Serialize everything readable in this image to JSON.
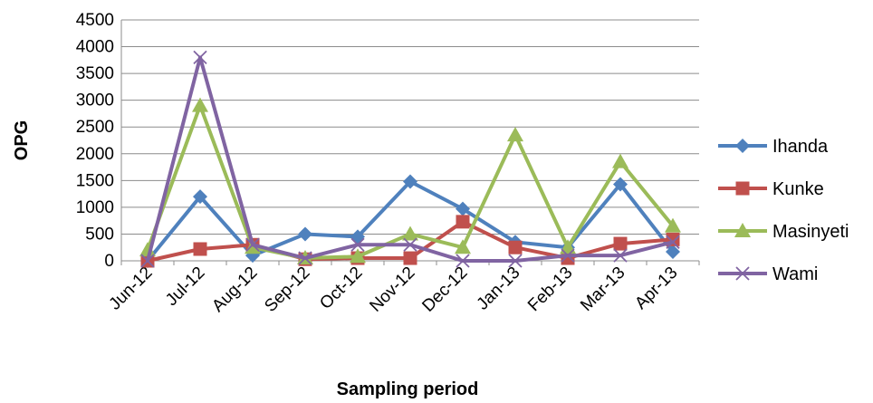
{
  "chart_data": {
    "type": "line",
    "xlabel": "Sampling period",
    "ylabel": "OPG",
    "categories": [
      "Jun-12",
      "Jul-12",
      "Aug-12",
      "Sep-12",
      "Oct-12",
      "Nov-12",
      "Dec-12",
      "Jan-13",
      "Feb-13",
      "Mar-13",
      "Apr-13"
    ],
    "ylim": [
      0,
      4500
    ],
    "yticks": [
      0,
      500,
      1000,
      1500,
      2000,
      2500,
      3000,
      3500,
      4000,
      4500
    ],
    "grid": true,
    "legend": "right",
    "series": [
      {
        "name": "Ihanda",
        "color": "#4f81bd",
        "marker": "diamond",
        "values": [
          0,
          1200,
          100,
          500,
          450,
          1480,
          970,
          350,
          250,
          1430,
          170
        ]
      },
      {
        "name": "Kunke",
        "color": "#c0504d",
        "marker": "square",
        "values": [
          0,
          220,
          300,
          30,
          50,
          50,
          730,
          250,
          50,
          320,
          400
        ]
      },
      {
        "name": "Masinyeti",
        "color": "#9bbb59",
        "marker": "triangle",
        "values": [
          200,
          2900,
          250,
          50,
          80,
          500,
          250,
          2350,
          250,
          1850,
          650
        ]
      },
      {
        "name": "Wami",
        "color": "#8064a2",
        "marker": "x",
        "values": [
          0,
          3800,
          300,
          50,
          300,
          300,
          0,
          0,
          100,
          100,
          350
        ]
      }
    ]
  }
}
